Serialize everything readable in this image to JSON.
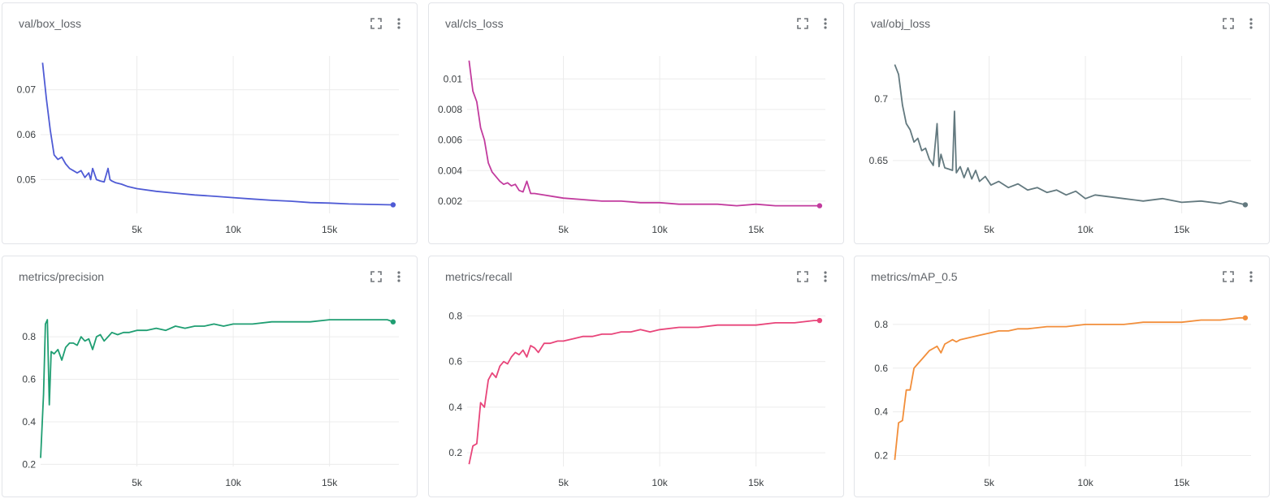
{
  "panels": [
    {
      "title": "val/box_loss",
      "color": "#4f5bd5"
    },
    {
      "title": "val/cls_loss",
      "color": "#c23b9e"
    },
    {
      "title": "val/obj_loss",
      "color": "#63797f"
    },
    {
      "title": "metrics/precision",
      "color": "#1f9e72"
    },
    {
      "title": "metrics/recall",
      "color": "#e8457a"
    },
    {
      "title": "metrics/mAP_0.5",
      "color": "#f28e3a"
    }
  ],
  "chart_data": [
    {
      "type": "line",
      "title": "val/box_loss",
      "x_ticks": [
        "5k",
        "10k",
        "15k"
      ],
      "x_tick_values": [
        5000,
        10000,
        15000
      ],
      "y_ticks": [
        "0.05",
        "0.06",
        "0.07"
      ],
      "y_tick_values": [
        0.05,
        0.06,
        0.07
      ],
      "xlim": [
        0,
        18600
      ],
      "ylim": [
        0.0425,
        0.0775
      ],
      "grid": true,
      "x": [
        100,
        300,
        500,
        700,
        900,
        1100,
        1300,
        1500,
        1700,
        1900,
        2100,
        2300,
        2500,
        2600,
        2700,
        2900,
        3100,
        3300,
        3500,
        3600,
        3700,
        3900,
        4200,
        4500,
        5000,
        6000,
        7000,
        8000,
        9000,
        10000,
        11000,
        12000,
        13000,
        14000,
        15000,
        16000,
        17000,
        18300
      ],
      "y": [
        0.076,
        0.068,
        0.061,
        0.0555,
        0.0545,
        0.055,
        0.0535,
        0.0525,
        0.052,
        0.0515,
        0.052,
        0.0505,
        0.0515,
        0.05,
        0.0525,
        0.05,
        0.0497,
        0.0495,
        0.0525,
        0.05,
        0.0497,
        0.0493,
        0.049,
        0.0485,
        0.048,
        0.0474,
        0.047,
        0.0466,
        0.0463,
        0.046,
        0.0457,
        0.0454,
        0.0452,
        0.0449,
        0.0448,
        0.0446,
        0.0445,
        0.0444
      ]
    },
    {
      "type": "line",
      "title": "val/cls_loss",
      "x_ticks": [
        "5k",
        "10k",
        "15k"
      ],
      "x_tick_values": [
        5000,
        10000,
        15000
      ],
      "y_ticks": [
        "0.002",
        "0.004",
        "0.006",
        "0.008",
        "0.01"
      ],
      "y_tick_values": [
        0.002,
        0.004,
        0.006,
        0.008,
        0.01
      ],
      "xlim": [
        0,
        18600
      ],
      "ylim": [
        0.0012,
        0.0115
      ],
      "grid": true,
      "x": [
        100,
        300,
        500,
        700,
        900,
        1100,
        1300,
        1500,
        1700,
        1900,
        2100,
        2300,
        2500,
        2700,
        2900,
        3100,
        3300,
        3500,
        4000,
        4500,
        5000,
        6000,
        7000,
        8000,
        9000,
        10000,
        11000,
        12000,
        13000,
        14000,
        15000,
        16000,
        17000,
        18300
      ],
      "y": [
        0.0112,
        0.0092,
        0.0085,
        0.0068,
        0.006,
        0.0045,
        0.0039,
        0.0036,
        0.0033,
        0.0031,
        0.0032,
        0.003,
        0.0031,
        0.0027,
        0.0026,
        0.0033,
        0.0025,
        0.0025,
        0.0024,
        0.0023,
        0.0022,
        0.0021,
        0.002,
        0.002,
        0.0019,
        0.0019,
        0.0018,
        0.0018,
        0.0018,
        0.0017,
        0.0018,
        0.0017,
        0.0017,
        0.0017
      ]
    },
    {
      "type": "line",
      "title": "val/obj_loss",
      "x_ticks": [
        "5k",
        "10k",
        "15k"
      ],
      "x_tick_values": [
        5000,
        10000,
        15000
      ],
      "y_ticks": [
        "0.65",
        "0.7"
      ],
      "y_tick_values": [
        0.65,
        0.7
      ],
      "xlim": [
        0,
        18600
      ],
      "ylim": [
        0.607,
        0.735
      ],
      "grid": true,
      "x": [
        100,
        300,
        500,
        700,
        900,
        1100,
        1300,
        1500,
        1700,
        1900,
        2100,
        2300,
        2400,
        2500,
        2700,
        2900,
        3100,
        3200,
        3300,
        3500,
        3700,
        3900,
        4100,
        4300,
        4500,
        4800,
        5100,
        5500,
        6000,
        6500,
        7000,
        7500,
        8000,
        8500,
        9000,
        9500,
        10000,
        10500,
        11000,
        12000,
        13000,
        14000,
        15000,
        16000,
        17000,
        17500,
        18300
      ],
      "y": [
        0.728,
        0.72,
        0.695,
        0.68,
        0.675,
        0.665,
        0.668,
        0.658,
        0.66,
        0.651,
        0.646,
        0.68,
        0.645,
        0.655,
        0.644,
        0.643,
        0.642,
        0.69,
        0.64,
        0.645,
        0.636,
        0.644,
        0.635,
        0.642,
        0.633,
        0.637,
        0.63,
        0.633,
        0.628,
        0.631,
        0.626,
        0.628,
        0.624,
        0.626,
        0.622,
        0.625,
        0.619,
        0.622,
        0.621,
        0.619,
        0.617,
        0.619,
        0.616,
        0.617,
        0.615,
        0.617,
        0.614
      ]
    },
    {
      "type": "line",
      "title": "metrics/precision",
      "x_ticks": [
        "5k",
        "10k",
        "15k"
      ],
      "x_tick_values": [
        5000,
        10000,
        15000
      ],
      "y_ticks": [
        "0.2",
        "0.4",
        "0.6",
        "0.8"
      ],
      "y_tick_values": [
        0.2,
        0.4,
        0.6,
        0.8
      ],
      "xlim": [
        0,
        18600
      ],
      "ylim": [
        0.19,
        0.93
      ],
      "grid": true,
      "x": [
        0,
        150,
        250,
        350,
        450,
        550,
        700,
        900,
        1100,
        1300,
        1500,
        1700,
        1900,
        2100,
        2300,
        2500,
        2700,
        2900,
        3100,
        3300,
        3500,
        3700,
        4000,
        4300,
        4600,
        5000,
        5500,
        6000,
        6500,
        7000,
        7500,
        8000,
        8500,
        9000,
        9500,
        10000,
        11000,
        12000,
        13000,
        14000,
        15000,
        16000,
        17000,
        18000,
        18300
      ],
      "y": [
        0.23,
        0.53,
        0.86,
        0.88,
        0.48,
        0.73,
        0.72,
        0.74,
        0.69,
        0.75,
        0.77,
        0.77,
        0.76,
        0.8,
        0.78,
        0.79,
        0.74,
        0.8,
        0.81,
        0.78,
        0.8,
        0.82,
        0.81,
        0.82,
        0.82,
        0.83,
        0.83,
        0.84,
        0.83,
        0.85,
        0.84,
        0.85,
        0.85,
        0.86,
        0.85,
        0.86,
        0.86,
        0.87,
        0.87,
        0.87,
        0.88,
        0.88,
        0.88,
        0.88,
        0.87
      ]
    },
    {
      "type": "line",
      "title": "metrics/recall",
      "x_ticks": [
        "5k",
        "10k",
        "15k"
      ],
      "x_tick_values": [
        5000,
        10000,
        15000
      ],
      "y_ticks": [
        "0.2",
        "0.4",
        "0.6",
        "0.8"
      ],
      "y_tick_values": [
        0.2,
        0.4,
        0.6,
        0.8
      ],
      "xlim": [
        0,
        18600
      ],
      "ylim": [
        0.14,
        0.83
      ],
      "grid": true,
      "x": [
        100,
        300,
        500,
        700,
        900,
        1100,
        1300,
        1500,
        1700,
        1900,
        2100,
        2300,
        2500,
        2700,
        2900,
        3100,
        3300,
        3500,
        3700,
        4000,
        4300,
        4700,
        5000,
        5500,
        6000,
        6500,
        7000,
        7500,
        8000,
        8500,
        9000,
        9500,
        10000,
        11000,
        12000,
        13000,
        14000,
        15000,
        16000,
        17000,
        18000,
        18300
      ],
      "y": [
        0.15,
        0.23,
        0.24,
        0.42,
        0.4,
        0.52,
        0.55,
        0.53,
        0.58,
        0.6,
        0.59,
        0.62,
        0.64,
        0.63,
        0.65,
        0.62,
        0.67,
        0.66,
        0.64,
        0.68,
        0.68,
        0.69,
        0.69,
        0.7,
        0.71,
        0.71,
        0.72,
        0.72,
        0.73,
        0.73,
        0.74,
        0.73,
        0.74,
        0.75,
        0.75,
        0.76,
        0.76,
        0.76,
        0.77,
        0.77,
        0.78,
        0.78
      ]
    },
    {
      "type": "line",
      "title": "metrics/mAP_0.5",
      "x_ticks": [
        "5k",
        "10k",
        "15k"
      ],
      "x_tick_values": [
        5000,
        10000,
        15000
      ],
      "y_ticks": [
        "0.2",
        "0.4",
        "0.6",
        "0.8"
      ],
      "y_tick_values": [
        0.2,
        0.4,
        0.6,
        0.8
      ],
      "xlim": [
        0,
        18600
      ],
      "ylim": [
        0.15,
        0.87
      ],
      "grid": true,
      "x": [
        100,
        300,
        500,
        700,
        900,
        1100,
        1300,
        1500,
        1700,
        1900,
        2100,
        2300,
        2500,
        2700,
        2900,
        3100,
        3300,
        3500,
        4000,
        4500,
        5000,
        5500,
        6000,
        6500,
        7000,
        8000,
        9000,
        10000,
        11000,
        12000,
        13000,
        14000,
        15000,
        16000,
        17000,
        18000,
        18300
      ],
      "y": [
        0.18,
        0.35,
        0.36,
        0.5,
        0.5,
        0.6,
        0.62,
        0.64,
        0.66,
        0.68,
        0.69,
        0.7,
        0.67,
        0.71,
        0.72,
        0.73,
        0.72,
        0.73,
        0.74,
        0.75,
        0.76,
        0.77,
        0.77,
        0.78,
        0.78,
        0.79,
        0.79,
        0.8,
        0.8,
        0.8,
        0.81,
        0.81,
        0.81,
        0.82,
        0.82,
        0.83,
        0.83
      ]
    }
  ]
}
